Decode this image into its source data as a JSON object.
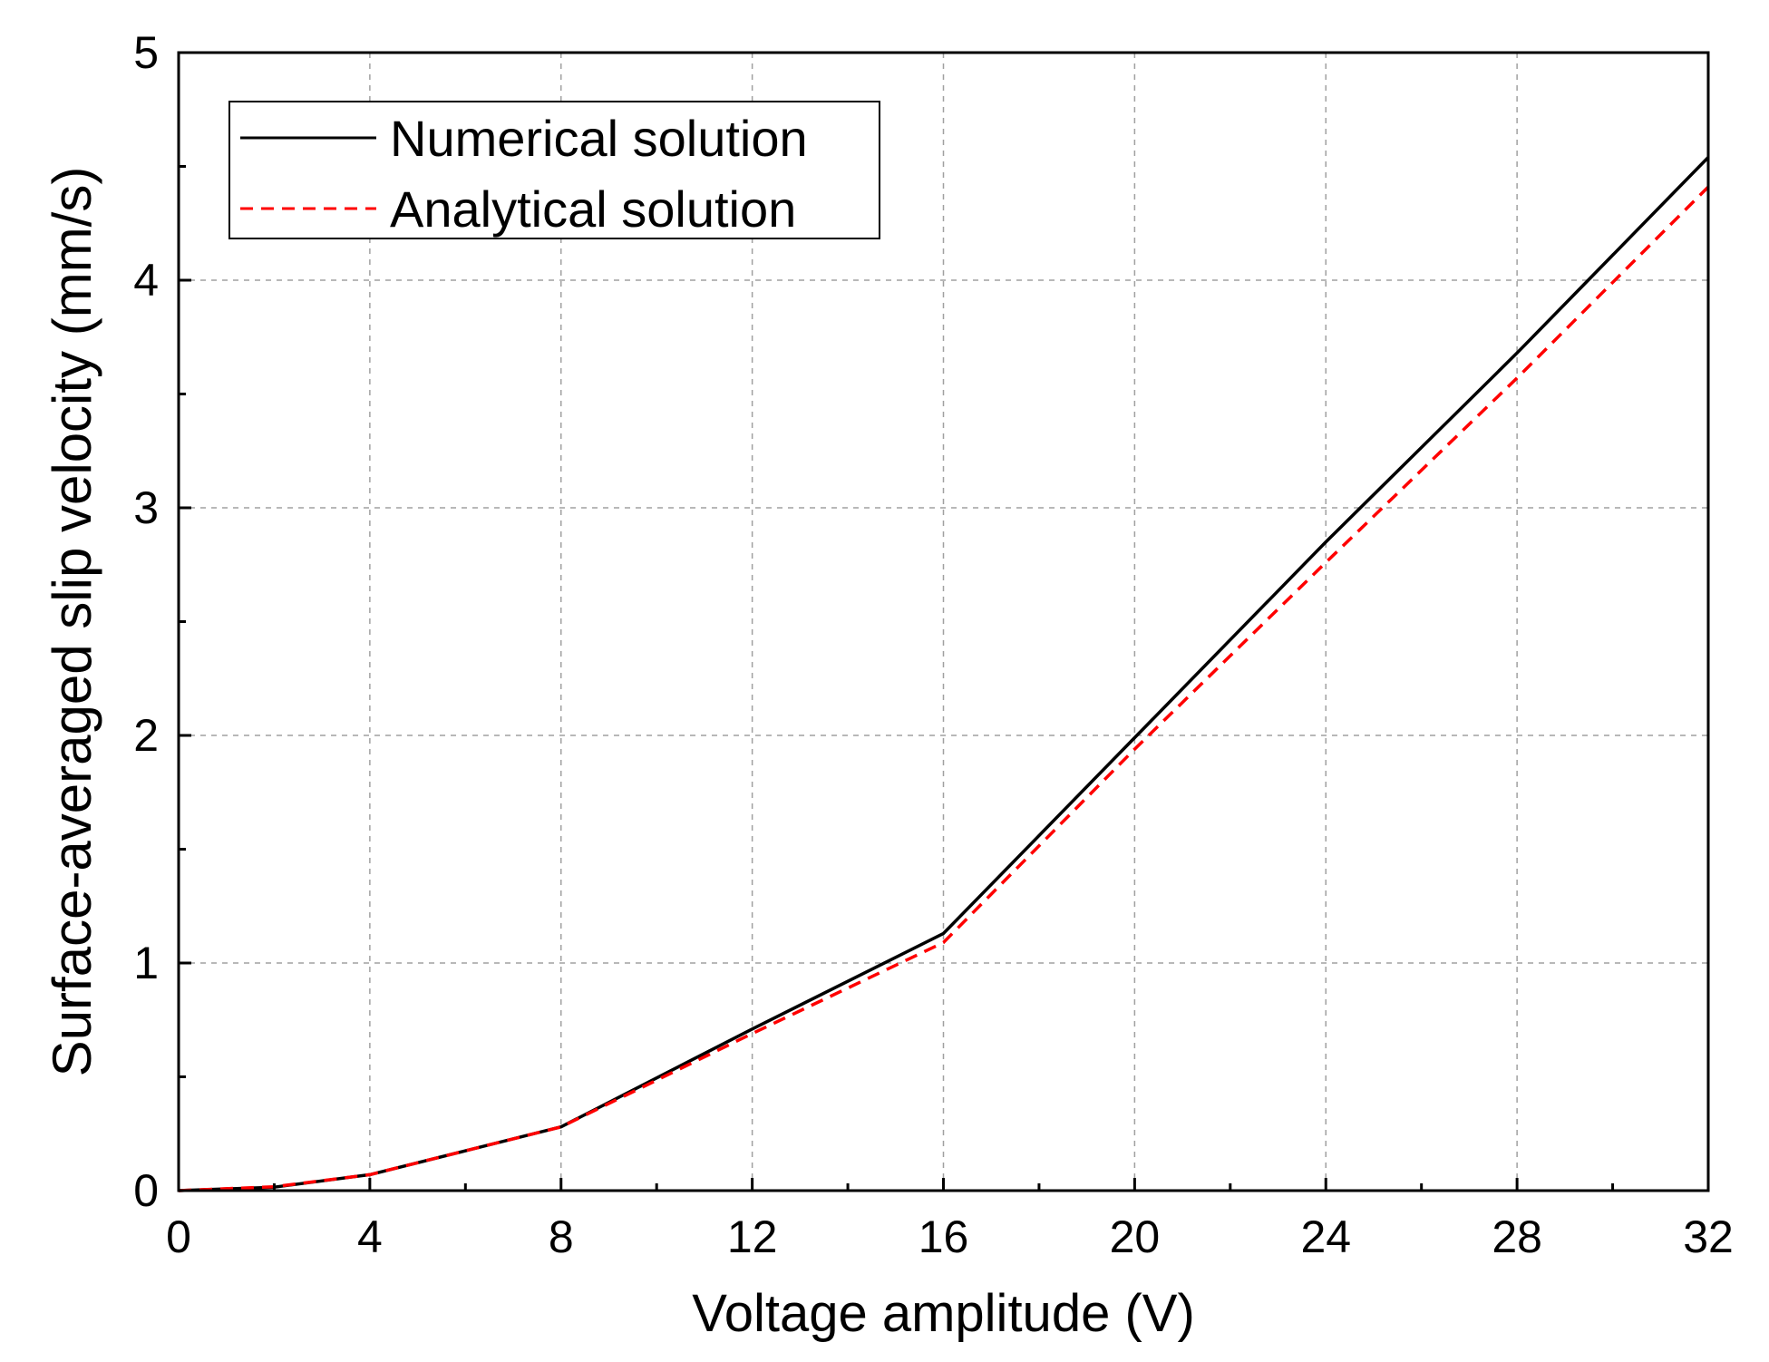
{
  "chart_data": {
    "type": "line",
    "title": "",
    "xlabel": "Voltage amplitude (V)",
    "ylabel": "Surface-averaged slip velocity (mm/s)",
    "xlim": [
      0,
      32
    ],
    "ylim": [
      0,
      5
    ],
    "xticks": [
      0,
      4,
      8,
      12,
      16,
      20,
      24,
      28,
      32
    ],
    "yticks": [
      0,
      1,
      2,
      3,
      4,
      5
    ],
    "xtick_labels": [
      "0",
      "4",
      "8",
      "12",
      "16",
      "20",
      "24",
      "28",
      "32"
    ],
    "ytick_labels": [
      "0",
      "1",
      "2",
      "3",
      "4",
      "5"
    ],
    "grid": true,
    "legend_position": "top-left",
    "series": [
      {
        "name": "Numerical solution",
        "color": "#000000",
        "style": "solid",
        "x": [
          0,
          2,
          4,
          8,
          12,
          16,
          20,
          24,
          28,
          32
        ],
        "y": [
          0,
          0.015,
          0.07,
          0.28,
          0.71,
          1.13,
          1.99,
          2.85,
          3.68,
          4.54
        ]
      },
      {
        "name": "Analytical solution",
        "color": "#ff0000",
        "style": "dashed",
        "x": [
          0,
          2,
          4,
          8,
          12,
          16,
          20,
          24,
          28,
          32
        ],
        "y": [
          0,
          0.017,
          0.07,
          0.28,
          0.69,
          1.09,
          1.94,
          2.76,
          3.57,
          4.41
        ]
      }
    ]
  }
}
